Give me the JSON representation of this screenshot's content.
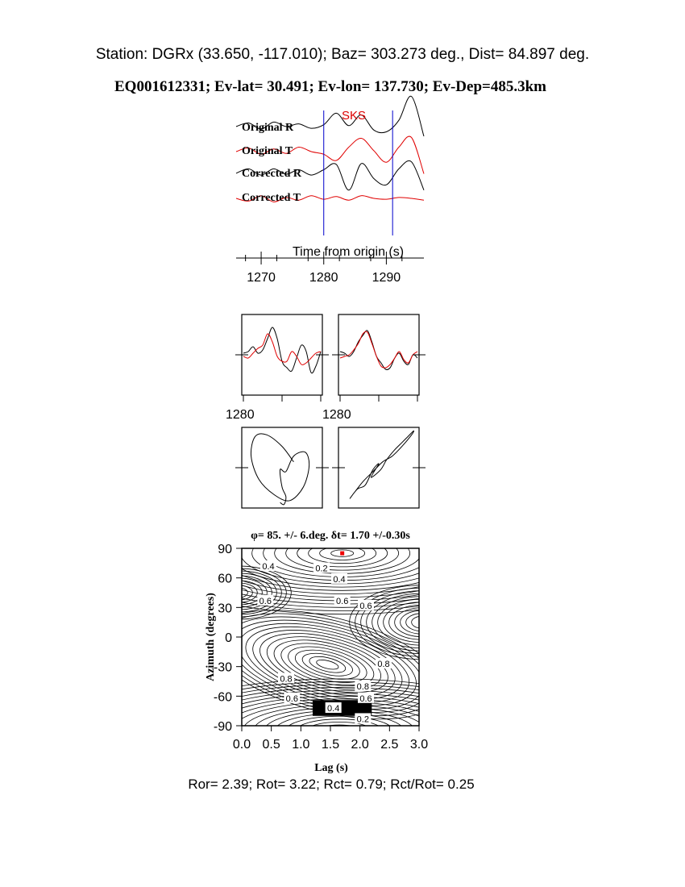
{
  "header": {
    "station_line": "Station: DGRx (33.650, -117.010); Baz=  303.273 deg., Dist=   84.897 deg.",
    "event_line": "EQ001612331; Ev-lat=  30.491; Ev-lon= 137.730; Ev-Dep=485.3km"
  },
  "footer": {
    "ratios_line": "Ror= 2.39; Rot= 3.22; Rct= 0.79; Rct/Rot= 0.25"
  },
  "colors": {
    "trace_r": "#000000",
    "trace_t": "#e00000",
    "window": "#0000cc",
    "best_fit": "#ee0000"
  },
  "chart_data": [
    {
      "id": "waveforms",
      "type": "line",
      "phase_label": "SKS",
      "xlabel": "Time from origin (s)",
      "x_ticks": [
        1270,
        1280,
        1290
      ],
      "xlim": [
        1266,
        1296
      ],
      "window": [
        1280,
        1291
      ],
      "series": [
        {
          "name": "Original R",
          "color": "#000000",
          "x": [
            1266,
            1268,
            1270,
            1272,
            1274,
            1276,
            1278,
            1280,
            1282,
            1284,
            1286,
            1288,
            1290,
            1292,
            1294,
            1296
          ],
          "y": [
            0.1,
            0.5,
            -0.2,
            0.6,
            0.1,
            0.4,
            -0.1,
            0.3,
            1.6,
            0.2,
            1.4,
            -0.3,
            -0.5,
            0.8,
            3.5,
            -1.0
          ]
        },
        {
          "name": "Original T",
          "color": "#e00000",
          "x": [
            1266,
            1268,
            1270,
            1272,
            1274,
            1276,
            1278,
            1280,
            1282,
            1284,
            1286,
            1288,
            1290,
            1292,
            1294,
            1296
          ],
          "y": [
            0.0,
            0.4,
            -0.3,
            0.3,
            -0.2,
            0.5,
            0.0,
            -0.3,
            -1.0,
            0.5,
            1.5,
            0.1,
            -1.2,
            0.5,
            1.6,
            -2.5
          ]
        },
        {
          "name": "Corrected R",
          "color": "#000000",
          "x": [
            1266,
            1268,
            1270,
            1272,
            1274,
            1276,
            1278,
            1280,
            1282,
            1284,
            1286,
            1288,
            1290,
            1292,
            1294,
            1296
          ],
          "y": [
            0.1,
            0.6,
            -0.1,
            0.6,
            0.0,
            0.5,
            -0.1,
            0.5,
            1.1,
            -1.8,
            1.2,
            -0.5,
            -1.2,
            0.6,
            1.4,
            -1.8
          ]
        },
        {
          "name": "Corrected T",
          "color": "#e00000",
          "x": [
            1266,
            1268,
            1270,
            1272,
            1274,
            1276,
            1278,
            1280,
            1282,
            1284,
            1286,
            1288,
            1290,
            1292,
            1294,
            1296
          ],
          "y": [
            0.0,
            -0.3,
            0.3,
            -0.4,
            0.1,
            -0.2,
            0.3,
            -0.1,
            0.2,
            -0.2,
            0.3,
            0.0,
            -0.1,
            0.1,
            0.0,
            -0.2
          ]
        }
      ]
    },
    {
      "id": "uncorrected-window",
      "type": "line",
      "x_tick_label": "1280",
      "series": [
        {
          "name": "R",
          "color": "#000000",
          "y": [
            0.05,
            0.1,
            0.25,
            0.05,
            0.15,
            0.5,
            0.85,
            0.5,
            -0.2,
            -0.4,
            -0.5,
            -0.1,
            0.3,
            0.1,
            -0.55,
            -0.35,
            0.1
          ]
        },
        {
          "name": "T",
          "color": "#e00000",
          "y": [
            -0.05,
            -0.1,
            0.05,
            0.2,
            0.3,
            0.65,
            0.4,
            -0.05,
            -0.2,
            -0.2,
            0.1,
            -0.05,
            -0.3,
            -0.25,
            -0.1,
            0.05,
            0.1
          ]
        }
      ]
    },
    {
      "id": "corrected-window",
      "type": "line",
      "x_tick_label": "1280",
      "series": [
        {
          "name": "R",
          "color": "#000000",
          "y": [
            0.1,
            0.05,
            -0.05,
            0.1,
            0.4,
            0.6,
            0.75,
            0.4,
            -0.05,
            -0.25,
            -0.45,
            -0.4,
            -0.1,
            0.05,
            -0.2,
            -0.3,
            0.0,
            -0.1
          ]
        },
        {
          "name": "T",
          "color": "#e00000",
          "y": [
            -0.1,
            -0.05,
            0.0,
            0.15,
            0.35,
            0.65,
            0.7,
            0.35,
            -0.05,
            -0.35,
            -0.4,
            -0.3,
            -0.1,
            0.1,
            -0.15,
            -0.25,
            0.0,
            0.1
          ]
        }
      ]
    },
    {
      "id": "uncorrected-particle-motion",
      "type": "line",
      "series": [
        {
          "name": "particle-motion",
          "color": "#000000",
          "x": [
            0.3,
            0.0,
            -0.4,
            -0.7,
            -0.8,
            -0.6,
            -0.2,
            0.2,
            0.55,
            0.7,
            0.6,
            0.3,
            0.1,
            -0.05,
            0.0,
            0.1,
            0.05,
            -0.05
          ],
          "y": [
            0.15,
            0.55,
            0.85,
            0.8,
            0.3,
            -0.3,
            -0.7,
            -0.85,
            -0.5,
            0.05,
            0.4,
            0.3,
            -0.1,
            -0.05,
            -0.5,
            -0.75,
            -0.95,
            -0.9
          ]
        }
      ]
    },
    {
      "id": "corrected-particle-motion",
      "type": "line",
      "series": [
        {
          "name": "particle-motion",
          "color": "#000000",
          "x": [
            -0.75,
            -0.55,
            -0.35,
            -0.15,
            0.0,
            -0.2,
            0.05,
            0.2,
            0.4,
            0.6,
            0.75,
            0.9,
            0.85,
            0.6,
            0.35,
            0.1,
            -0.15,
            -0.4,
            -0.6
          ],
          "y": [
            -0.8,
            -0.55,
            -0.45,
            -0.05,
            0.1,
            -0.25,
            -0.05,
            0.2,
            0.45,
            0.65,
            0.8,
            0.95,
            0.85,
            0.55,
            0.3,
            0.15,
            -0.1,
            -0.35,
            -0.6
          ]
        }
      ]
    },
    {
      "id": "misfit-contour",
      "type": "heatmap",
      "title": "φ= 85. +/- 6.deg.  δt= 1.70 +/-0.30s",
      "xlabel": "Lag (s)",
      "ylabel": "Azimuth (degrees)",
      "xlim": [
        0.0,
        3.0
      ],
      "ylim": [
        -90,
        90
      ],
      "x_ticks": [
        "0.0",
        "0.5",
        "1.0",
        "1.5",
        "2.0",
        "2.5",
        "3.0"
      ],
      "y_ticks": [
        "90",
        "60",
        "30",
        "0",
        "-30",
        "-60",
        "-90"
      ],
      "best_fit": {
        "lag": 1.7,
        "azimuth": 85
      },
      "contour_labels": [
        {
          "text": "0.4",
          "lag": 0.45,
          "az": 72
        },
        {
          "text": "0.2",
          "lag": 1.35,
          "az": 70
        },
        {
          "text": "0.4",
          "lag": 1.65,
          "az": 59
        },
        {
          "text": "0.6",
          "lag": 0.4,
          "az": 37
        },
        {
          "text": "0.6",
          "lag": 1.7,
          "az": 37
        },
        {
          "text": "0.6",
          "lag": 2.1,
          "az": 32
        },
        {
          "text": "0.8",
          "lag": 2.4,
          "az": -27
        },
        {
          "text": "0.8",
          "lag": 0.75,
          "az": -42
        },
        {
          "text": "0.8",
          "lag": 2.05,
          "az": -50
        },
        {
          "text": "0.6",
          "lag": 0.85,
          "az": -62
        },
        {
          "text": "0.6",
          "lag": 2.1,
          "az": -62
        },
        {
          "text": "0.4",
          "lag": 1.55,
          "az": -72
        },
        {
          "text": "0.2",
          "lag": 2.05,
          "az": -83
        }
      ]
    }
  ]
}
